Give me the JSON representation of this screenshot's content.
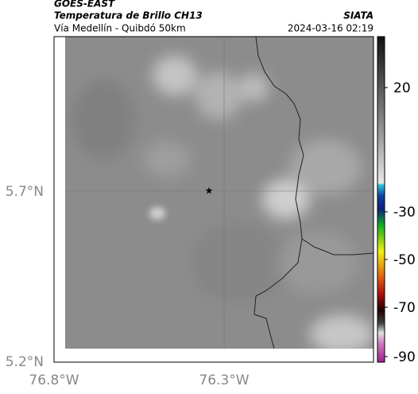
{
  "header": {
    "title": "GOES-EAST",
    "subtitle": "Temperatura de Brillo CH13",
    "location": "Vía Medellín - Quibdó 50km",
    "source": "SIATA",
    "datetime": "2024-03-16 02:19"
  },
  "map": {
    "lat_labels": [
      "5.7°N",
      "5.2°N"
    ],
    "lon_labels": [
      "76.8°W",
      "76.3°W"
    ]
  },
  "colorbar": {
    "ticks": [
      20,
      -30,
      -50,
      -70,
      -90
    ]
  }
}
